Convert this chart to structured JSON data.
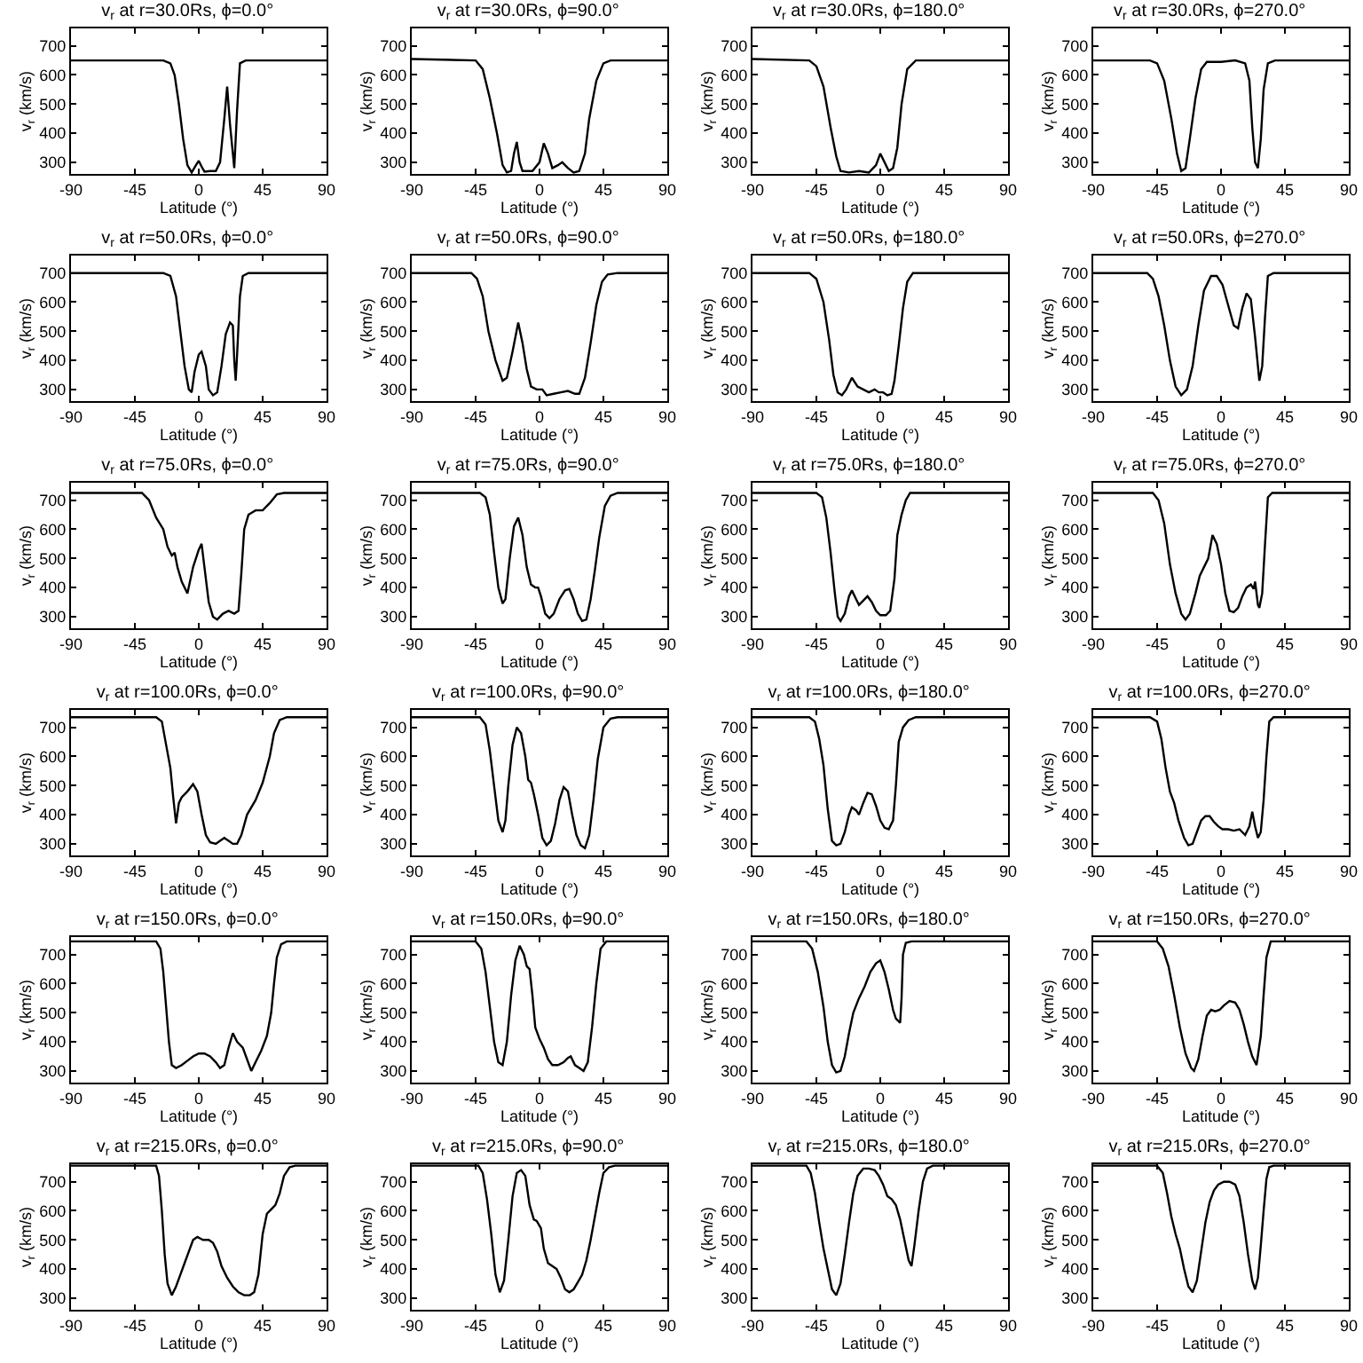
{
  "chart_data": [
    {
      "type": "line",
      "title": "v$_{r}$ at r=30.0Rs, ϕ=0.0°",
      "xlabel": "Latitude (°)",
      "ylabel": "v$_{r}$ (km/s)",
      "color": "#000000",
      "xlim": [
        -90,
        90
      ],
      "ylim": [
        260,
        760
      ],
      "xticks": [
        -90,
        -45,
        0,
        45,
        90
      ],
      "yticks": [
        300,
        400,
        500,
        600,
        700
      ],
      "x": [
        -90,
        -25,
        -20,
        -17,
        -14,
        -11,
        -8,
        -5,
        -2,
        0,
        2,
        4,
        8,
        12,
        15,
        18,
        20,
        22,
        25,
        27,
        29,
        33,
        90
      ],
      "values": [
        650,
        650,
        640,
        600,
        500,
        380,
        290,
        265,
        290,
        305,
        285,
        268,
        270,
        270,
        300,
        450,
        560,
        430,
        280,
        480,
        640,
        650,
        650
      ]
    },
    {
      "type": "line",
      "title": "v$_{r}$ at r=30.0Rs, ϕ=90.0°",
      "xlabel": "Latitude (°)",
      "ylabel": "v$_{r}$ (km/s)",
      "color": "#000000",
      "xlim": [
        -90,
        90
      ],
      "ylim": [
        260,
        760
      ],
      "xticks": [
        -90,
        -45,
        0,
        45,
        90
      ],
      "yticks": [
        300,
        400,
        500,
        600,
        700
      ],
      "x": [
        -90,
        -45,
        -40,
        -35,
        -30,
        -26,
        -23,
        -20,
        -18,
        -16,
        -14,
        -12,
        -5,
        0,
        3,
        6,
        9,
        13,
        16,
        20,
        24,
        28,
        32,
        35,
        40,
        45,
        50,
        90
      ],
      "values": [
        655,
        650,
        620,
        520,
        400,
        290,
        265,
        270,
        330,
        370,
        300,
        270,
        270,
        300,
        365,
        330,
        280,
        290,
        300,
        280,
        265,
        270,
        330,
        450,
        580,
        640,
        650,
        650
      ]
    },
    {
      "type": "line",
      "title": "v$_{r}$ at r=30.0Rs, ϕ=180.0°",
      "xlabel": "Latitude (°)",
      "ylabel": "v$_{r}$ (km/s)",
      "color": "#000000",
      "xlim": [
        -90,
        90
      ],
      "ylim": [
        260,
        760
      ],
      "xticks": [
        -90,
        -45,
        0,
        45,
        90
      ],
      "yticks": [
        300,
        400,
        500,
        600,
        700
      ],
      "x": [
        -90,
        -50,
        -45,
        -40,
        -35,
        -31,
        -28,
        -22,
        -15,
        -8,
        -3,
        0,
        3,
        6,
        9,
        12,
        15,
        19,
        25,
        90
      ],
      "values": [
        655,
        650,
        630,
        560,
        420,
        320,
        270,
        265,
        270,
        265,
        290,
        330,
        300,
        270,
        280,
        350,
        500,
        620,
        650,
        650
      ]
    },
    {
      "type": "line",
      "title": "v$_{r}$ at r=30.0Rs, ϕ=270.0°",
      "xlabel": "Latitude (°)",
      "ylabel": "v$_{r}$ (km/s)",
      "color": "#000000",
      "xlim": [
        -90,
        90
      ],
      "ylim": [
        260,
        760
      ],
      "xticks": [
        -90,
        -45,
        0,
        45,
        90
      ],
      "yticks": [
        300,
        400,
        500,
        600,
        700
      ],
      "x": [
        -90,
        -50,
        -45,
        -40,
        -35,
        -31,
        -28,
        -25,
        -22,
        -18,
        -14,
        -10,
        0,
        10,
        17,
        20,
        22,
        24,
        26,
        28,
        30,
        33,
        38,
        90
      ],
      "values": [
        650,
        650,
        640,
        580,
        450,
        330,
        270,
        280,
        380,
        520,
        620,
        645,
        645,
        650,
        640,
        580,
        420,
        300,
        280,
        380,
        550,
        640,
        650,
        650
      ]
    },
    {
      "type": "line",
      "title": "v$_{r}$ at r=50.0Rs, ϕ=0.0°",
      "xlabel": "Latitude (°)",
      "ylabel": "v$_{r}$ (km/s)",
      "color": "#000000",
      "xlim": [
        -90,
        90
      ],
      "ylim": [
        260,
        760
      ],
      "xticks": [
        -90,
        -45,
        0,
        45,
        90
      ],
      "yticks": [
        300,
        400,
        500,
        600,
        700
      ],
      "x": [
        -90,
        -25,
        -20,
        -16,
        -13,
        -10,
        -7,
        -5,
        -3,
        0,
        2,
        5,
        7,
        10,
        13,
        16,
        19,
        22,
        24,
        25,
        26,
        27,
        29,
        31,
        35,
        90
      ],
      "values": [
        700,
        700,
        690,
        620,
        500,
        380,
        300,
        290,
        360,
        420,
        430,
        380,
        300,
        280,
        290,
        380,
        490,
        530,
        520,
        400,
        330,
        420,
        620,
        690,
        700,
        700
      ]
    },
    {
      "type": "line",
      "title": "v$_{r}$ at r=50.0Rs, ϕ=90.0°",
      "xlabel": "Latitude (°)",
      "ylabel": "v$_{r}$ (km/s)",
      "color": "#000000",
      "xlim": [
        -90,
        90
      ],
      "ylim": [
        260,
        760
      ],
      "xticks": [
        -90,
        -45,
        0,
        45,
        90
      ],
      "yticks": [
        300,
        400,
        500,
        600,
        700
      ],
      "x": [
        -90,
        -48,
        -44,
        -40,
        -36,
        -31,
        -26,
        -23,
        -19,
        -15,
        -12,
        -9,
        -6,
        -2,
        2,
        5,
        10,
        15,
        20,
        25,
        28,
        32,
        36,
        40,
        44,
        48,
        55,
        90
      ],
      "values": [
        700,
        700,
        680,
        620,
        500,
        400,
        330,
        340,
        430,
        530,
        460,
        370,
        310,
        300,
        300,
        280,
        285,
        290,
        295,
        285,
        285,
        340,
        460,
        590,
        670,
        695,
        700,
        700
      ]
    },
    {
      "type": "line",
      "title": "v$_{r}$ at r=50.0Rs, ϕ=180.0°",
      "xlabel": "Latitude (°)",
      "ylabel": "v$_{r}$ (km/s)",
      "color": "#000000",
      "xlim": [
        -90,
        90
      ],
      "ylim": [
        260,
        760
      ],
      "xticks": [
        -90,
        -45,
        0,
        45,
        90
      ],
      "yticks": [
        300,
        400,
        500,
        600,
        700
      ],
      "x": [
        -90,
        -50,
        -45,
        -40,
        -36,
        -33,
        -30,
        -27,
        -24,
        -20,
        -16,
        -12,
        -8,
        -4,
        -1,
        2,
        5,
        8,
        10,
        13,
        16,
        19,
        23,
        90
      ],
      "values": [
        700,
        700,
        680,
        600,
        470,
        350,
        290,
        280,
        300,
        340,
        310,
        300,
        290,
        300,
        290,
        290,
        280,
        285,
        330,
        450,
        580,
        670,
        700,
        700
      ]
    },
    {
      "type": "line",
      "title": "v$_{r}$ at r=50.0Rs, ϕ=270.0°",
      "xlabel": "Latitude (°)",
      "ylabel": "v$_{r}$ (km/s)",
      "color": "#000000",
      "xlim": [
        -90,
        90
      ],
      "ylim": [
        260,
        760
      ],
      "xticks": [
        -90,
        -45,
        0,
        45,
        90
      ],
      "yticks": [
        300,
        400,
        500,
        600,
        700
      ],
      "x": [
        -90,
        -52,
        -48,
        -44,
        -40,
        -36,
        -32,
        -28,
        -24,
        -20,
        -16,
        -12,
        -7,
        -3,
        1,
        5,
        9,
        12,
        15,
        18,
        21,
        24,
        27,
        29,
        31,
        33,
        37,
        90
      ],
      "values": [
        700,
        700,
        680,
        620,
        520,
        400,
        310,
        280,
        300,
        380,
        520,
        640,
        690,
        690,
        660,
        590,
        520,
        510,
        580,
        630,
        610,
        480,
        330,
        380,
        550,
        690,
        700,
        700
      ]
    },
    {
      "type": "line",
      "title": "v$_{r}$ at r=75.0Rs, ϕ=0.0°",
      "xlabel": "Latitude (°)",
      "ylabel": "v$_{r}$ (km/s)",
      "color": "#000000",
      "xlim": [
        -90,
        90
      ],
      "ylim": [
        260,
        760
      ],
      "xticks": [
        -90,
        -45,
        0,
        45,
        90
      ],
      "yticks": [
        300,
        400,
        500,
        600,
        700
      ],
      "x": [
        -90,
        -40,
        -35,
        -30,
        -25,
        -22,
        -19,
        -17,
        -15,
        -12,
        -8,
        -4,
        0,
        2,
        4,
        7,
        10,
        13,
        17,
        21,
        25,
        28,
        30,
        32,
        35,
        40,
        45,
        50,
        55,
        60,
        90
      ],
      "values": [
        725,
        725,
        700,
        640,
        600,
        540,
        510,
        520,
        470,
        420,
        380,
        470,
        530,
        550,
        470,
        350,
        300,
        290,
        310,
        320,
        310,
        320,
        450,
        600,
        650,
        665,
        665,
        690,
        720,
        725,
        725
      ]
    },
    {
      "type": "line",
      "title": "v$_{r}$ at r=75.0Rs, ϕ=90.0°",
      "xlabel": "Latitude (°)",
      "ylabel": "v$_{r}$ (km/s)",
      "color": "#000000",
      "xlim": [
        -90,
        90
      ],
      "ylim": [
        260,
        760
      ],
      "xticks": [
        -90,
        -45,
        0,
        45,
        90
      ],
      "yticks": [
        300,
        400,
        500,
        600,
        700
      ],
      "x": [
        -90,
        -42,
        -38,
        -35,
        -32,
        -29,
        -26,
        -24,
        -21,
        -18,
        -15,
        -12,
        -9,
        -6,
        -3,
        -1,
        1,
        4,
        7,
        10,
        14,
        18,
        21,
        24,
        27,
        30,
        33,
        36,
        39,
        42,
        46,
        50,
        55,
        90
      ],
      "values": [
        725,
        725,
        710,
        650,
        520,
        400,
        345,
        360,
        500,
        610,
        640,
        580,
        470,
        410,
        400,
        400,
        370,
        310,
        295,
        310,
        360,
        390,
        395,
        360,
        310,
        285,
        290,
        360,
        460,
        570,
        680,
        715,
        725,
        725
      ]
    },
    {
      "type": "line",
      "title": "v$_{r}$ at r=75.0Rs, ϕ=180.0°",
      "xlabel": "Latitude (°)",
      "ylabel": "v$_{r}$ (km/s)",
      "color": "#000000",
      "xlim": [
        -90,
        90
      ],
      "ylim": [
        260,
        760
      ],
      "xticks": [
        -90,
        -45,
        0,
        45,
        90
      ],
      "yticks": [
        300,
        400,
        500,
        600,
        700
      ],
      "x": [
        -90,
        -45,
        -41,
        -38,
        -35,
        -32,
        -30,
        -28,
        -25,
        -22,
        -20,
        -17,
        -15,
        -12,
        -9,
        -6,
        -3,
        0,
        4,
        7,
        10,
        12,
        15,
        18,
        21,
        90
      ],
      "values": [
        725,
        725,
        710,
        640,
        520,
        380,
        300,
        285,
        310,
        370,
        390,
        360,
        340,
        355,
        370,
        350,
        320,
        305,
        305,
        320,
        430,
        580,
        650,
        700,
        725,
        725
      ]
    },
    {
      "type": "line",
      "title": "v$_{r}$ at r=75.0Rs, ϕ=270.0°",
      "xlabel": "Latitude (°)",
      "ylabel": "v$_{r}$ (km/s)",
      "color": "#000000",
      "xlim": [
        -90,
        90
      ],
      "ylim": [
        260,
        760
      ],
      "xticks": [
        -90,
        -45,
        0,
        45,
        90
      ],
      "yticks": [
        300,
        400,
        500,
        600,
        700
      ],
      "x": [
        -90,
        -48,
        -44,
        -40,
        -36,
        -32,
        -28,
        -25,
        -22,
        -18,
        -15,
        -12,
        -9,
        -6,
        -3,
        0,
        3,
        6,
        9,
        12,
        15,
        18,
        21,
        23,
        24,
        26,
        27,
        29,
        31,
        33,
        36,
        90
      ],
      "values": [
        725,
        725,
        700,
        620,
        480,
        380,
        310,
        290,
        310,
        380,
        440,
        470,
        500,
        580,
        550,
        480,
        380,
        320,
        315,
        330,
        370,
        400,
        410,
        395,
        420,
        340,
        330,
        380,
        550,
        710,
        725,
        725
      ]
    },
    {
      "type": "line",
      "title": "v$_{r}$ at r=100.0Rs, ϕ=0.0°",
      "xlabel": "Latitude (°)",
      "ylabel": "v$_{r}$ (km/s)",
      "color": "#000000",
      "xlim": [
        -90,
        90
      ],
      "ylim": [
        260,
        760
      ],
      "xticks": [
        -90,
        -45,
        0,
        45,
        90
      ],
      "yticks": [
        300,
        400,
        500,
        600,
        700
      ],
      "x": [
        -90,
        -30,
        -26,
        -23,
        -20,
        -18,
        -16,
        -14,
        -12,
        -8,
        -4,
        -1,
        2,
        5,
        8,
        12,
        15,
        18,
        21,
        24,
        27,
        30,
        34,
        40,
        45,
        50,
        53,
        57,
        62,
        90
      ],
      "values": [
        735,
        735,
        720,
        640,
        560,
        460,
        370,
        440,
        460,
        480,
        505,
        480,
        400,
        330,
        305,
        300,
        310,
        320,
        310,
        300,
        300,
        330,
        400,
        450,
        510,
        600,
        680,
        725,
        735,
        735
      ]
    },
    {
      "type": "line",
      "title": "v$_{r}$ at r=100.0Rs, ϕ=90.0°",
      "xlabel": "Latitude (°)",
      "ylabel": "v$_{r}$ (km/s)",
      "color": "#000000",
      "xlim": [
        -90,
        90
      ],
      "ylim": [
        260,
        760
      ],
      "xticks": [
        -90,
        -45,
        0,
        45,
        90
      ],
      "yticks": [
        300,
        400,
        500,
        600,
        700
      ],
      "x": [
        -90,
        -42,
        -38,
        -35,
        -32,
        -29,
        -26,
        -24,
        -22,
        -19,
        -16,
        -13,
        -10,
        -8,
        -6,
        -4,
        -1,
        2,
        5,
        8,
        11,
        14,
        17,
        20,
        23,
        26,
        29,
        32,
        35,
        38,
        41,
        45,
        50,
        55,
        90
      ],
      "values": [
        735,
        735,
        710,
        620,
        500,
        380,
        340,
        380,
        500,
        640,
        700,
        680,
        600,
        520,
        510,
        470,
        400,
        320,
        295,
        310,
        370,
        450,
        495,
        480,
        400,
        330,
        295,
        285,
        330,
        450,
        590,
        700,
        730,
        735,
        735
      ]
    },
    {
      "type": "line",
      "title": "v$_{r}$ at r=100.0Rs, ϕ=180.0°",
      "xlabel": "Latitude (°)",
      "ylabel": "v$_{r}$ (km/s)",
      "color": "#000000",
      "xlim": [
        -90,
        90
      ],
      "ylim": [
        260,
        760
      ],
      "xticks": [
        -90,
        -45,
        0,
        45,
        90
      ],
      "yticks": [
        300,
        400,
        500,
        600,
        700
      ],
      "x": [
        -90,
        -50,
        -46,
        -43,
        -40,
        -37,
        -34,
        -31,
        -28,
        -25,
        -22,
        -20,
        -17,
        -15,
        -12,
        -9,
        -6,
        -3,
        0,
        3,
        6,
        9,
        11,
        13,
        16,
        20,
        25,
        90
      ],
      "values": [
        735,
        735,
        720,
        660,
        570,
        420,
        310,
        295,
        300,
        340,
        400,
        425,
        415,
        400,
        440,
        475,
        470,
        430,
        380,
        355,
        350,
        380,
        500,
        650,
        700,
        725,
        735,
        735
      ]
    },
    {
      "type": "line",
      "title": "v$_{r}$ at r=100.0Rs, ϕ=270.0°",
      "xlabel": "Latitude (°)",
      "ylabel": "v$_{r}$ (km/s)",
      "color": "#000000",
      "xlim": [
        -90,
        90
      ],
      "ylim": [
        260,
        760
      ],
      "xticks": [
        -90,
        -45,
        0,
        45,
        90
      ],
      "yticks": [
        300,
        400,
        500,
        600,
        700
      ],
      "x": [
        -90,
        -50,
        -45,
        -42,
        -39,
        -36,
        -33,
        -30,
        -26,
        -23,
        -20,
        -17,
        -14,
        -11,
        -8,
        -5,
        -2,
        1,
        5,
        9,
        13,
        17,
        20,
        22,
        24,
        26,
        28,
        30,
        32,
        34,
        37,
        90
      ],
      "values": [
        735,
        735,
        720,
        660,
        560,
        480,
        440,
        380,
        320,
        295,
        300,
        340,
        380,
        395,
        395,
        375,
        360,
        350,
        350,
        345,
        350,
        330,
        360,
        410,
        360,
        320,
        340,
        450,
        600,
        720,
        735,
        735
      ]
    },
    {
      "type": "line",
      "title": "v$_{r}$ at r=150.0Rs, ϕ=0.0°",
      "xlabel": "Latitude (°)",
      "ylabel": "v$_{r}$ (km/s)",
      "color": "#000000",
      "xlim": [
        -90,
        90
      ],
      "ylim": [
        260,
        760
      ],
      "xticks": [
        -90,
        -45,
        0,
        45,
        90
      ],
      "yticks": [
        300,
        400,
        500,
        600,
        700
      ],
      "x": [
        -90,
        -30,
        -27,
        -25,
        -23,
        -21,
        -19,
        -16,
        -12,
        -8,
        -4,
        0,
        4,
        8,
        12,
        15,
        18,
        21,
        24,
        27,
        31,
        34,
        37,
        40,
        44,
        48,
        51,
        53,
        55,
        58,
        62,
        90
      ],
      "values": [
        745,
        745,
        720,
        640,
        520,
        400,
        320,
        310,
        320,
        335,
        350,
        360,
        360,
        350,
        330,
        310,
        320,
        380,
        430,
        400,
        380,
        340,
        300,
        330,
        370,
        420,
        500,
        600,
        690,
        735,
        745,
        745
      ]
    },
    {
      "type": "line",
      "title": "v$_{r}$ at r=150.0Rs, ϕ=90.0°",
      "xlabel": "Latitude (°)",
      "ylabel": "v$_{r}$ (km/s)",
      "color": "#000000",
      "xlim": [
        -90,
        90
      ],
      "ylim": [
        260,
        760
      ],
      "xticks": [
        -90,
        -45,
        0,
        45,
        90
      ],
      "yticks": [
        300,
        400,
        500,
        600,
        700
      ],
      "x": [
        -90,
        -45,
        -41,
        -38,
        -35,
        -32,
        -29,
        -26,
        -23,
        -20,
        -17,
        -14,
        -11,
        -9,
        -7,
        -5,
        -3,
        0,
        3,
        6,
        9,
        13,
        17,
        20,
        22,
        25,
        28,
        31,
        34,
        37,
        40,
        43,
        47,
        90
      ],
      "values": [
        745,
        745,
        720,
        640,
        520,
        400,
        330,
        320,
        400,
        560,
        680,
        730,
        700,
        660,
        650,
        560,
        450,
        410,
        380,
        340,
        320,
        320,
        330,
        345,
        350,
        320,
        310,
        300,
        330,
        450,
        600,
        720,
        745,
        745
      ]
    },
    {
      "type": "line",
      "title": "v$_{r}$ at r=150.0Rs, ϕ=180.0°",
      "xlabel": "Latitude (°)",
      "ylabel": "v$_{r}$ (km/s)",
      "color": "#000000",
      "xlim": [
        -90,
        90
      ],
      "ylim": [
        260,
        760
      ],
      "xticks": [
        -90,
        -45,
        0,
        45,
        90
      ],
      "yticks": [
        300,
        400,
        500,
        600,
        700
      ],
      "x": [
        -90,
        -52,
        -48,
        -44,
        -40,
        -37,
        -34,
        -31,
        -28,
        -25,
        -22,
        -19,
        -15,
        -11,
        -7,
        -3,
        0,
        3,
        6,
        9,
        11,
        14,
        15,
        16,
        18,
        22,
        90
      ],
      "values": [
        745,
        745,
        720,
        640,
        520,
        400,
        320,
        295,
        300,
        350,
        430,
        500,
        550,
        590,
        640,
        670,
        680,
        640,
        580,
        510,
        480,
        465,
        550,
        700,
        740,
        745,
        745
      ]
    },
    {
      "type": "line",
      "title": "v$_{r}$ at r=150.0Rs, ϕ=270.0°",
      "xlabel": "Latitude (°)",
      "ylabel": "v$_{r}$ (km/s)",
      "color": "#000000",
      "xlim": [
        -90,
        90
      ],
      "ylim": [
        260,
        760
      ],
      "xticks": [
        -90,
        -45,
        0,
        45,
        90
      ],
      "yticks": [
        300,
        400,
        500,
        600,
        700
      ],
      "x": [
        -90,
        -45,
        -41,
        -37,
        -33,
        -29,
        -25,
        -21,
        -19,
        -16,
        -13,
        -10,
        -7,
        -4,
        -1,
        2,
        6,
        10,
        13,
        16,
        19,
        22,
        25,
        28,
        30,
        32,
        35,
        90
      ],
      "values": [
        745,
        745,
        720,
        660,
        560,
        450,
        360,
        310,
        300,
        340,
        420,
        490,
        510,
        505,
        510,
        525,
        540,
        535,
        510,
        460,
        400,
        350,
        320,
        420,
        560,
        690,
        745,
        745
      ]
    },
    {
      "type": "line",
      "title": "v$_{r}$ at r=215.0Rs, ϕ=0.0°",
      "xlabel": "Latitude (°)",
      "ylabel": "v$_{r}$ (km/s)",
      "color": "#000000",
      "xlim": [
        -90,
        90
      ],
      "ylim": [
        260,
        760
      ],
      "xticks": [
        -90,
        -45,
        0,
        45,
        90
      ],
      "yticks": [
        300,
        400,
        500,
        600,
        700
      ],
      "x": [
        -90,
        -30,
        -28,
        -26,
        -24,
        -22,
        -19,
        -16,
        -13,
        -10,
        -7,
        -4,
        -1,
        3,
        7,
        10,
        13,
        16,
        20,
        24,
        28,
        32,
        36,
        39,
        42,
        45,
        48,
        51,
        54,
        57,
        60,
        64,
        68,
        90
      ],
      "values": [
        755,
        755,
        720,
        600,
        450,
        350,
        310,
        340,
        380,
        420,
        460,
        500,
        510,
        500,
        500,
        490,
        460,
        410,
        370,
        340,
        320,
        310,
        310,
        320,
        380,
        520,
        590,
        605,
        620,
        660,
        720,
        750,
        755,
        755
      ]
    },
    {
      "type": "line",
      "title": "v$_{r}$ at r=215.0Rs, ϕ=90.0°",
      "xlabel": "Latitude (°)",
      "ylabel": "v$_{r}$ (km/s)",
      "color": "#000000",
      "xlim": [
        -90,
        90
      ],
      "ylim": [
        260,
        760
      ],
      "xticks": [
        -90,
        -45,
        0,
        45,
        90
      ],
      "yticks": [
        300,
        400,
        500,
        600,
        700
      ],
      "x": [
        -90,
        -43,
        -40,
        -37,
        -34,
        -31,
        -28,
        -25,
        -22,
        -19,
        -16,
        -13,
        -10,
        -7,
        -4,
        -2,
        1,
        3,
        6,
        9,
        12,
        15,
        18,
        21,
        24,
        27,
        30,
        33,
        36,
        39,
        42,
        45,
        49,
        53,
        90
      ],
      "values": [
        755,
        755,
        730,
        640,
        520,
        380,
        320,
        360,
        500,
        650,
        730,
        740,
        720,
        620,
        570,
        565,
        540,
        470,
        420,
        410,
        400,
        370,
        330,
        320,
        330,
        355,
        380,
        430,
        500,
        580,
        660,
        730,
        750,
        755,
        755
      ]
    },
    {
      "type": "line",
      "title": "v$_{r}$ at r=215.0Rs, ϕ=180.0°",
      "xlabel": "Latitude (°)",
      "ylabel": "v$_{r}$ (km/s)",
      "color": "#000000",
      "xlim": [
        -90,
        90
      ],
      "ylim": [
        260,
        760
      ],
      "xticks": [
        -90,
        -45,
        0,
        45,
        90
      ],
      "yticks": [
        300,
        400,
        500,
        600,
        700
      ],
      "x": [
        -90,
        -52,
        -49,
        -46,
        -43,
        -40,
        -37,
        -34,
        -31,
        -28,
        -25,
        -22,
        -19,
        -16,
        -12,
        -8,
        -4,
        -1,
        2,
        5,
        8,
        11,
        14,
        17,
        20,
        22,
        24,
        27,
        30,
        33,
        37,
        90
      ],
      "values": [
        755,
        755,
        730,
        660,
        560,
        470,
        400,
        330,
        310,
        350,
        450,
        560,
        660,
        720,
        745,
        745,
        740,
        720,
        690,
        650,
        640,
        620,
        570,
        500,
        430,
        410,
        480,
        600,
        700,
        745,
        755,
        755
      ]
    },
    {
      "type": "line",
      "title": "v$_{r}$ at r=215.0Rs, ϕ=270.0°",
      "xlabel": "Latitude (°)",
      "ylabel": "v$_{r}$ (km/s)",
      "color": "#000000",
      "xlim": [
        -90,
        90
      ],
      "ylim": [
        260,
        760
      ],
      "xticks": [
        -90,
        -45,
        0,
        45,
        90
      ],
      "yticks": [
        300,
        400,
        500,
        600,
        700
      ],
      "x": [
        -90,
        -45,
        -41,
        -38,
        -35,
        -32,
        -29,
        -26,
        -23,
        -20,
        -17,
        -14,
        -11,
        -8,
        -5,
        -2,
        2,
        6,
        10,
        13,
        16,
        19,
        22,
        24,
        26,
        28,
        30,
        32,
        34,
        37,
        90
      ],
      "values": [
        755,
        755,
        730,
        660,
        580,
        520,
        470,
        400,
        340,
        320,
        360,
        460,
        560,
        630,
        670,
        690,
        700,
        700,
        690,
        650,
        560,
        450,
        360,
        330,
        370,
        480,
        600,
        710,
        750,
        755,
        755
      ]
    }
  ]
}
